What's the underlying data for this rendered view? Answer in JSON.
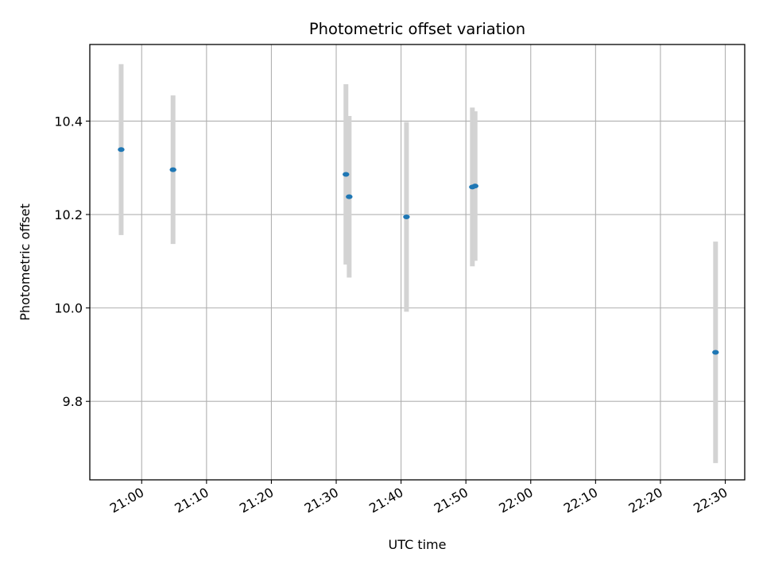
{
  "chart_data": {
    "type": "scatter",
    "title": "Photometric offset variation",
    "xlabel": "UTC time",
    "ylabel": "Photometric offset",
    "x_unit": "clock time HH:MM (UTC)",
    "xlim": [
      "20:52",
      "22:33"
    ],
    "ylim": [
      9.632,
      10.564
    ],
    "grid": true,
    "x_ticks": [
      "21:00",
      "21:10",
      "21:20",
      "21:30",
      "21:40",
      "21:50",
      "22:00",
      "22:10",
      "22:20",
      "22:30"
    ],
    "y_ticks": [
      9.8,
      10.0,
      10.2,
      10.4
    ],
    "y_tick_labels": [
      "9.8",
      "10.0",
      "10.2",
      "10.4"
    ],
    "series": [
      {
        "marker_color": "#1f77b4",
        "errorbar_color": "#d3d3d3",
        "points": [
          {
            "x": "20:56:50",
            "y": 10.339,
            "yerr": 0.183
          },
          {
            "x": "21:04:50",
            "y": 10.296,
            "yerr": 0.159
          },
          {
            "x": "21:31:30",
            "y": 10.286,
            "yerr": 0.193
          },
          {
            "x": "21:32:00",
            "y": 10.238,
            "yerr": 0.173
          },
          {
            "x": "21:40:50",
            "y": 10.195,
            "yerr": 0.203
          },
          {
            "x": "21:51:00",
            "y": 10.259,
            "yerr": 0.17
          },
          {
            "x": "21:51:25",
            "y": 10.261,
            "yerr": 0.16
          },
          {
            "x": "22:28:30",
            "y": 9.905,
            "yerr": 0.237
          }
        ]
      }
    ]
  }
}
